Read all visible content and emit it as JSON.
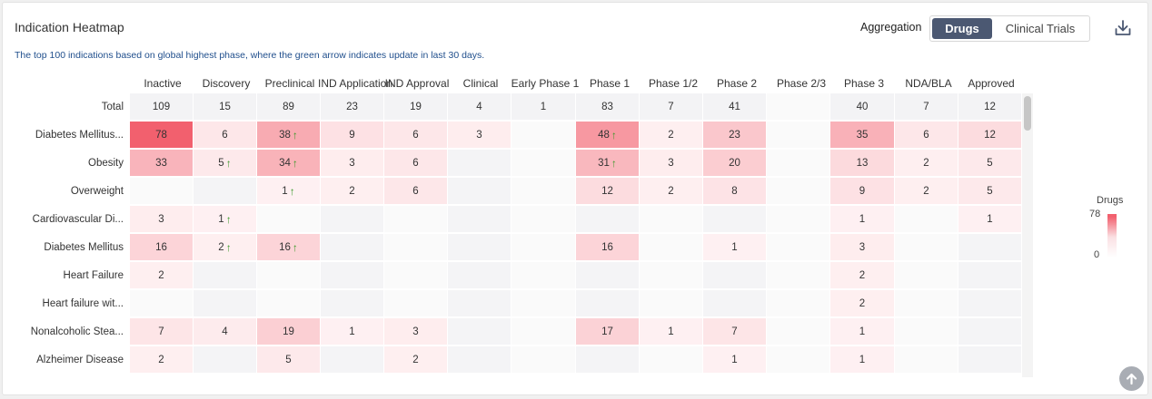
{
  "header": {
    "title": "Indication Heatmap",
    "subtitle": "The top 100 indications based on global highest phase, where the green arrow indicates update in last 30 days.",
    "aggregation_label": "Aggregation",
    "toggle": {
      "active": "Drugs",
      "inactive": "Clinical Trials"
    },
    "download_icon": "download-icon"
  },
  "legend": {
    "title": "Drugs",
    "max": "78",
    "min": "0",
    "color_high": "#f2606e",
    "color_low": "#ffffff"
  },
  "scroll_top_icon": "arrow-up-circle-icon",
  "chart_data": {
    "type": "heatmap",
    "columns": [
      "Inactive",
      "Discovery",
      "Preclinical",
      "IND Application",
      "IND Approval",
      "Clinical",
      "Early Phase 1",
      "Phase 1",
      "Phase 1/2",
      "Phase 2",
      "Phase 2/3",
      "Phase 3",
      "NDA/BLA",
      "Approved"
    ],
    "rows": [
      {
        "label": "Total",
        "values": [
          109,
          15,
          89,
          23,
          19,
          4,
          1,
          83,
          7,
          41,
          null,
          40,
          7,
          12
        ],
        "arrows": []
      },
      {
        "label": "Diabetes Mellitus...",
        "values": [
          78,
          6,
          38,
          9,
          6,
          3,
          null,
          48,
          2,
          23,
          null,
          35,
          6,
          12
        ],
        "arrows": [
          2,
          7
        ]
      },
      {
        "label": "Obesity",
        "values": [
          33,
          5,
          34,
          3,
          6,
          null,
          null,
          31,
          3,
          20,
          null,
          13,
          2,
          5
        ],
        "arrows": [
          1,
          2,
          7
        ]
      },
      {
        "label": "Overweight",
        "values": [
          null,
          null,
          1,
          2,
          6,
          null,
          null,
          12,
          2,
          8,
          null,
          9,
          2,
          5
        ],
        "arrows": [
          2
        ]
      },
      {
        "label": "Cardiovascular Di...",
        "values": [
          3,
          1,
          null,
          null,
          null,
          null,
          null,
          null,
          null,
          null,
          null,
          1,
          null,
          1
        ],
        "arrows": [
          1
        ]
      },
      {
        "label": "Diabetes Mellitus",
        "values": [
          16,
          2,
          16,
          null,
          null,
          null,
          null,
          16,
          null,
          1,
          null,
          3,
          null,
          null
        ],
        "arrows": [
          1,
          2
        ]
      },
      {
        "label": "Heart Failure",
        "values": [
          2,
          null,
          null,
          null,
          null,
          null,
          null,
          null,
          null,
          null,
          null,
          2,
          null,
          null
        ],
        "arrows": []
      },
      {
        "label": "Heart failure wit...",
        "values": [
          null,
          null,
          null,
          null,
          null,
          null,
          null,
          null,
          null,
          null,
          null,
          2,
          null,
          null
        ],
        "arrows": []
      },
      {
        "label": "Nonalcoholic Stea...",
        "values": [
          7,
          4,
          19,
          1,
          3,
          null,
          null,
          17,
          1,
          7,
          null,
          1,
          null,
          null
        ],
        "arrows": []
      },
      {
        "label": "Alzheimer Disease",
        "values": [
          2,
          null,
          5,
          null,
          2,
          null,
          null,
          null,
          null,
          1,
          null,
          1,
          null,
          null
        ],
        "arrows": []
      }
    ],
    "max_value": 78,
    "arrow_color": "#3a9a2a"
  }
}
